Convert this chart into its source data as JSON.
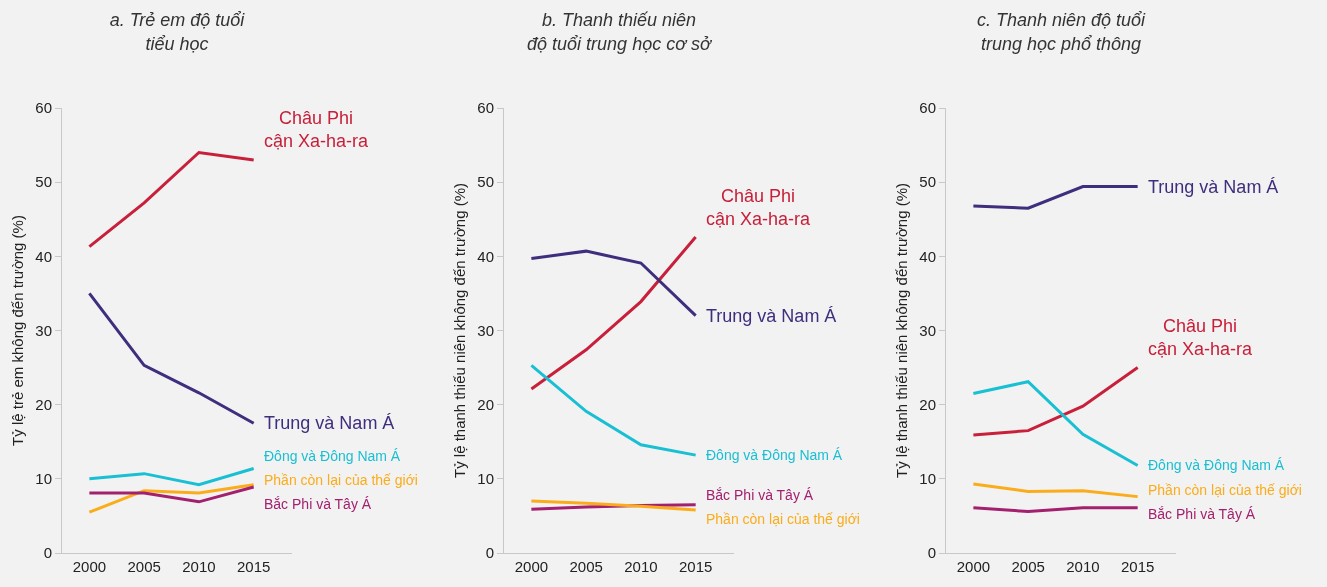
{
  "chart_data": [
    {
      "type": "line",
      "title": "a. Trẻ em độ tuổi\ntiểu học",
      "ylabel": "Tỷ lệ trẻ em không đến trường (%)",
      "categories": [
        "2000",
        "2005",
        "2010",
        "2015"
      ],
      "ylim": [
        0,
        60
      ],
      "yticks": [
        0,
        10,
        20,
        30,
        40,
        50,
        60
      ],
      "grid": false,
      "legend": false,
      "marker": "none",
      "line_style": "solid",
      "series": [
        {
          "name": "Châu Phi\ncận Xa-ha-ra",
          "color": "#c8203a",
          "values": [
            41.3,
            47.2,
            54,
            53
          ]
        },
        {
          "name": "Trung và Nam Á",
          "color": "#3f2d7d",
          "values": [
            35,
            25.3,
            21.6,
            17.5
          ]
        },
        {
          "name": "Đông và Đông Nam Á",
          "color": "#19bfd3",
          "values": [
            10,
            10.7,
            9.2,
            11.4
          ]
        },
        {
          "name": "Phần còn lại của thế giới",
          "color": "#fbac1a",
          "values": [
            5.5,
            8.4,
            8.1,
            9.2
          ]
        },
        {
          "name": "Bắc Phi và Tây Á",
          "color": "#a3206e",
          "values": [
            8.1,
            8.1,
            6.9,
            8.9
          ]
        }
      ]
    },
    {
      "type": "line",
      "title": "b. Thanh thiếu niên\nđộ tuổi trung học cơ sở",
      "ylabel": "Tỷ lệ thanh thiếu niên không đến trường (%)",
      "categories": [
        "2000",
        "2005",
        "2010",
        "2015"
      ],
      "ylim": [
        0,
        60
      ],
      "yticks": [
        0,
        10,
        20,
        30,
        40,
        50,
        60
      ],
      "grid": false,
      "legend": false,
      "marker": "none",
      "line_style": "solid",
      "series": [
        {
          "name": "Châu Phi\ncận Xa-ha-ra",
          "color": "#c8203a",
          "values": [
            22.1,
            27.4,
            33.9,
            42.6
          ]
        },
        {
          "name": "Trung và Nam Á",
          "color": "#3f2d7d",
          "values": [
            39.7,
            40.7,
            39.1,
            32
          ]
        },
        {
          "name": "Đông và Đông Nam Á",
          "color": "#19bfd3",
          "values": [
            25.3,
            19.1,
            14.6,
            13.2
          ]
        },
        {
          "name": "Bắc Phi và Tây Á",
          "color": "#a3206e",
          "values": [
            5.9,
            6.2,
            6.4,
            6.5
          ]
        },
        {
          "name": "Phần còn lại của thế giới",
          "color": "#fbac1a",
          "values": [
            7.0,
            6.7,
            6.3,
            5.8
          ]
        }
      ]
    },
    {
      "type": "line",
      "title": "c. Thanh niên độ tuổi\ntrung học phổ thông",
      "ylabel": "Tỷ lệ thanh thiếu niên không đến trường (%)",
      "categories": [
        "2000",
        "2005",
        "2010",
        "2015"
      ],
      "ylim": [
        0,
        60
      ],
      "yticks": [
        0,
        10,
        20,
        30,
        40,
        50,
        60
      ],
      "grid": false,
      "legend": false,
      "marker": "none",
      "line_style": "solid",
      "series": [
        {
          "name": "Trung và Nam Á",
          "color": "#3f2d7d",
          "values": [
            46.8,
            46.5,
            49.4,
            49.4
          ]
        },
        {
          "name": "Châu Phi\ncận Xa-ha-ra",
          "color": "#c8203a",
          "values": [
            15.9,
            16.5,
            19.8,
            25
          ]
        },
        {
          "name": "Đông và Đông Nam Á",
          "color": "#19bfd3",
          "values": [
            21.5,
            23.1,
            16,
            11.8
          ]
        },
        {
          "name": "Phần còn lại của thế giới",
          "color": "#fbac1a",
          "values": [
            9.3,
            8.3,
            8.4,
            7.6
          ]
        },
        {
          "name": "Bắc Phi và Tây Á",
          "color": "#a3206e",
          "values": [
            6.1,
            5.6,
            6.1,
            6.1
          ]
        }
      ]
    }
  ]
}
